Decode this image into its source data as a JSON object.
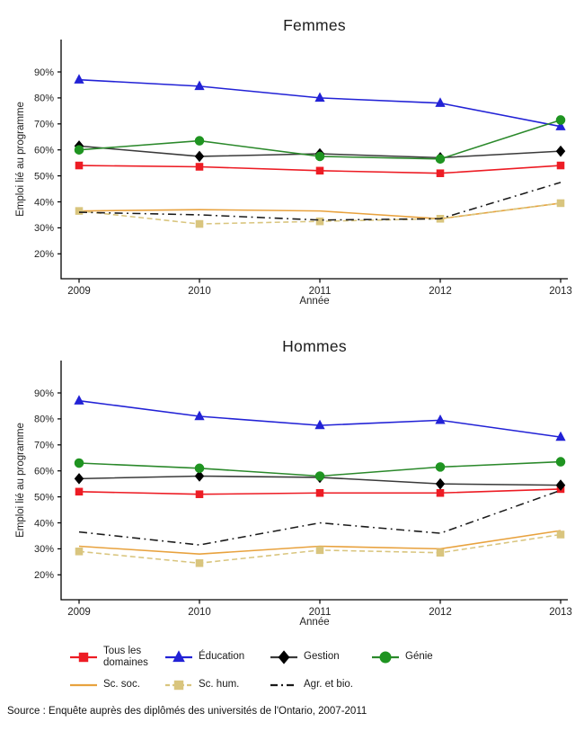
{
  "page": {
    "source_note": "Source : Enquête auprès des diplômés des universités de l'Ontario, 2007-2011"
  },
  "chart_data": [
    {
      "type": "line",
      "title": "Femmes",
      "xlabel": "Année",
      "ylabel": "Emploi lié au programme",
      "x": [
        2009,
        2010,
        2011,
        2012,
        2013
      ],
      "ylim": [
        12,
        102
      ],
      "yticks": [
        20,
        30,
        40,
        50,
        60,
        70,
        80,
        90
      ],
      "ytick_suffix": "%",
      "grid": false,
      "legend_position": "bottom",
      "series": [
        {
          "key": "tous",
          "name": "Tous les domaines",
          "color": "#ed1c24",
          "marker": "square",
          "dash": "solid",
          "values": [
            54,
            53.5,
            52,
            51,
            54
          ]
        },
        {
          "key": "education",
          "name": "Éducation",
          "color": "#2222d6",
          "marker": "triangle",
          "dash": "solid",
          "values": [
            87,
            84.5,
            80,
            78,
            69
          ]
        },
        {
          "key": "gestion",
          "name": "Gestion",
          "color": "#000000",
          "line_color": "#3a3a3a",
          "marker": "diamond",
          "dash": "solid",
          "values": [
            61.5,
            57.5,
            58.5,
            57,
            59.5
          ]
        },
        {
          "key": "genie",
          "name": "Génie",
          "color": "#1f9421",
          "line_color": "#2b892b",
          "marker": "circle",
          "dash": "solid",
          "values": [
            60,
            63.5,
            57.5,
            56.5,
            71.5
          ]
        },
        {
          "key": "scsoc",
          "name": "Sc. soc.",
          "color": "#e8a23e",
          "marker": "none",
          "dash": "solid",
          "values": [
            36.5,
            37,
            36.5,
            33.5,
            39.5
          ]
        },
        {
          "key": "schum",
          "name": "Sc. hum.",
          "color": "#d9c57e",
          "marker": "square",
          "dash": "dashed",
          "values": [
            36.5,
            31.5,
            32.5,
            33.5,
            39.5
          ]
        },
        {
          "key": "agr",
          "name": "Agr. et bio.",
          "color": "#1a1a1a",
          "marker": "none",
          "dash": "dashdot",
          "values": [
            36,
            35,
            33,
            33.5,
            47.5
          ]
        }
      ]
    },
    {
      "type": "line",
      "title": "Hommes",
      "xlabel": "Année",
      "ylabel": "Emploi lié au programme",
      "x": [
        2009,
        2010,
        2011,
        2012,
        2013
      ],
      "ylim": [
        12,
        102
      ],
      "yticks": [
        20,
        30,
        40,
        50,
        60,
        70,
        80,
        90
      ],
      "ytick_suffix": "%",
      "grid": false,
      "legend_position": "bottom",
      "series": [
        {
          "key": "tous",
          "name": "Tous les domaines",
          "color": "#ed1c24",
          "marker": "square",
          "dash": "solid",
          "values": [
            52,
            51,
            51.5,
            51.5,
            53
          ]
        },
        {
          "key": "education",
          "name": "Éducation",
          "color": "#2222d6",
          "marker": "triangle",
          "dash": "solid",
          "values": [
            87,
            81,
            77.5,
            79.5,
            73
          ]
        },
        {
          "key": "gestion",
          "name": "Gestion",
          "color": "#000000",
          "line_color": "#3a3a3a",
          "marker": "diamond",
          "dash": "solid",
          "values": [
            57,
            58,
            57.5,
            55,
            54.5
          ]
        },
        {
          "key": "genie",
          "name": "Génie",
          "color": "#1f9421",
          "line_color": "#2b892b",
          "marker": "circle",
          "dash": "solid",
          "values": [
            63,
            61,
            58,
            61.5,
            63.5
          ]
        },
        {
          "key": "scsoc",
          "name": "Sc. soc.",
          "color": "#e8a23e",
          "marker": "none",
          "dash": "solid",
          "values": [
            31,
            28,
            31,
            30,
            37
          ]
        },
        {
          "key": "schum",
          "name": "Sc. hum.",
          "color": "#d9c57e",
          "marker": "square",
          "dash": "dashed",
          "values": [
            29,
            24.5,
            29.5,
            28.5,
            35.5
          ]
        },
        {
          "key": "agr",
          "name": "Agr. et bio.",
          "color": "#1a1a1a",
          "marker": "none",
          "dash": "dashdot",
          "values": [
            36.5,
            31.5,
            40,
            36,
            52.5
          ]
        }
      ]
    }
  ],
  "legend": {
    "rows": [
      [
        "tous",
        "education",
        "gestion",
        "genie"
      ],
      [
        "scsoc",
        "schum",
        "agr"
      ]
    ],
    "labels": {
      "tous": "Tous les domaines",
      "education": "Éducation",
      "gestion": "Gestion",
      "genie": "Génie",
      "scsoc": "Sc. soc.",
      "schum": "Sc. hum.",
      "agr": "Agr. et bio."
    }
  }
}
